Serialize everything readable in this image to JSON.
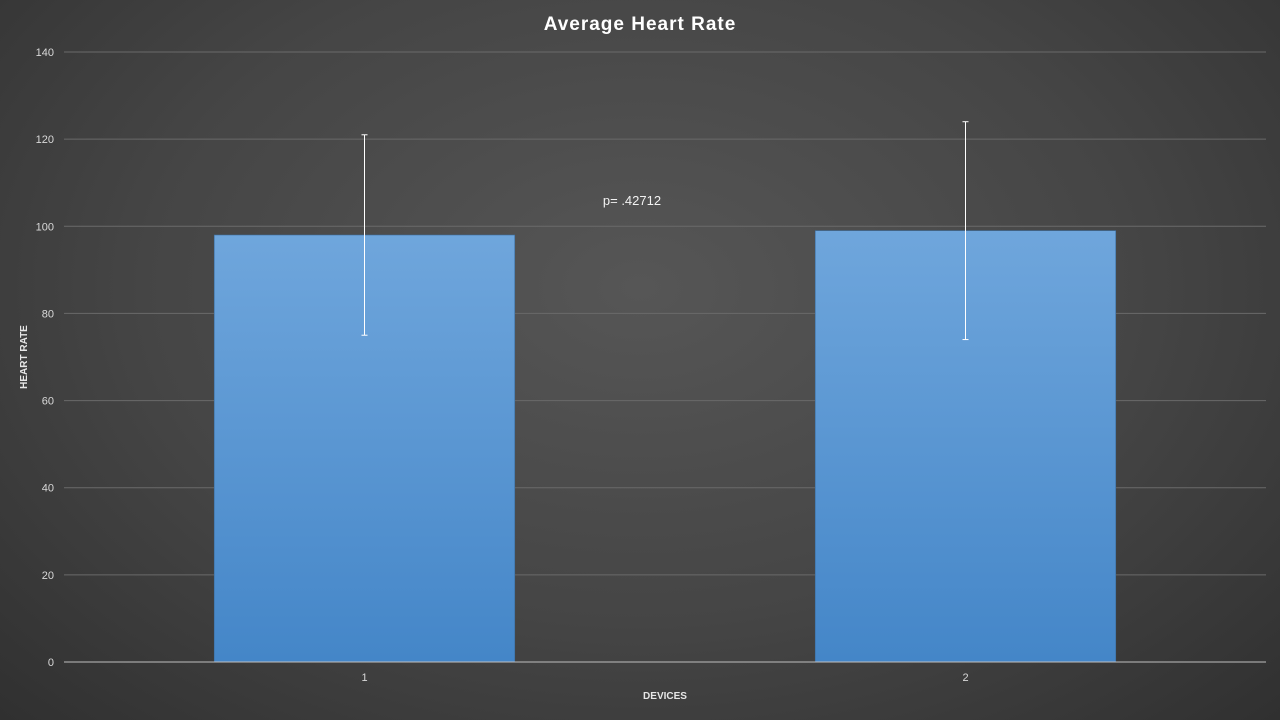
{
  "chart_data": {
    "type": "bar",
    "title": "Average Heart Rate",
    "xlabel": "DEVICES",
    "ylabel": "HEART RATE",
    "categories": [
      "1",
      "2"
    ],
    "values": [
      98,
      99
    ],
    "error_bars": [
      {
        "low": 75,
        "high": 121
      },
      {
        "low": 74,
        "high": 124
      }
    ],
    "ylim": [
      0,
      140
    ],
    "yticks": [
      "0",
      "20",
      "40",
      "60",
      "80",
      "100",
      "120",
      "140"
    ],
    "annotations": [
      {
        "text": "p= .42712"
      }
    ],
    "grid": true,
    "bar_color_top": "#6fa6dc",
    "bar_color_bottom": "#4486c8"
  }
}
